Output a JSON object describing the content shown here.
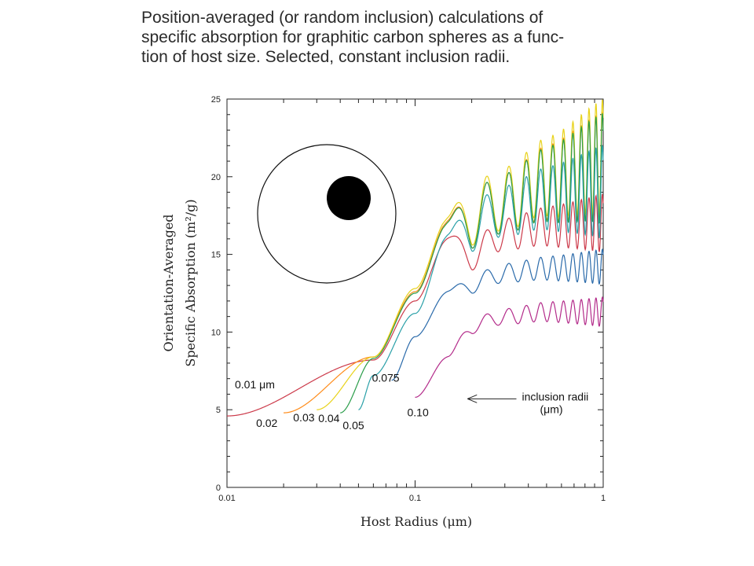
{
  "title_lines": [
    "Position-averaged (or random inclusion) calculations of",
    "specific absorption for graphitic carbon spheres as a func-",
    "tion of host size. Selected, constant inclusion radii."
  ],
  "chart_data": {
    "type": "line",
    "xscale": "log",
    "xlim": [
      0.01,
      1
    ],
    "ylim": [
      0,
      25
    ],
    "xlabel": "Host Radius (μm)",
    "ylabel_lines": [
      "Orientation-Averaged",
      "Specific Absorption (m²/g)"
    ],
    "xticks": [
      {
        "value": 0.01,
        "label": "0.01"
      },
      {
        "value": 0.1,
        "label": "0.1"
      },
      {
        "value": 1,
        "label": "1"
      }
    ],
    "yticks": [
      0,
      5,
      10,
      15,
      20,
      25
    ],
    "grid": false,
    "legend_note": {
      "line1": "inclusion radii",
      "line2": "(μm)"
    },
    "series": [
      {
        "name": "0.01 μm",
        "color": "#cc3a4a",
        "x_start": 0.01,
        "y_start": 4.6,
        "base_x": [
          0.06,
          0.1,
          0.15,
          0.2,
          0.3,
          0.5,
          1.0
        ],
        "base_y": [
          8.2,
          12.0,
          16.0,
          15.0,
          16.3,
          16.8,
          17.0
        ],
        "amp": 1.0
      },
      {
        "name": "0.02",
        "color": "#ff8c1a",
        "x_start": 0.02,
        "y_start": 4.8,
        "base_x": [
          0.06,
          0.1,
          0.15,
          0.2,
          0.3,
          0.5,
          1.0
        ],
        "base_y": [
          8.4,
          12.6,
          17.1,
          17.3,
          18.3,
          19.6,
          20.6
        ],
        "amp": 1.9
      },
      {
        "name": "0.03",
        "color": "#e8d21a",
        "x_start": 0.03,
        "y_start": 5.0,
        "base_x": [
          0.06,
          0.1,
          0.15,
          0.2,
          0.3,
          0.5,
          1.0
        ],
        "base_y": [
          8.4,
          12.8,
          17.3,
          17.6,
          18.6,
          20.0,
          21.2
        ],
        "amp": 2.0
      },
      {
        "name": "0.04",
        "color": "#2a9d4a",
        "x_start": 0.04,
        "y_start": 4.8,
        "base_x": [
          0.06,
          0.1,
          0.15,
          0.2,
          0.3,
          0.5,
          1.0
        ],
        "base_y": [
          8.3,
          12.5,
          17.0,
          17.3,
          18.3,
          19.5,
          20.5
        ],
        "amp": 1.9
      },
      {
        "name": "0.05",
        "color": "#2aa0a8",
        "x_start": 0.05,
        "y_start": 5.0,
        "base_x": [
          0.06,
          0.1,
          0.15,
          0.2,
          0.3,
          0.5,
          1.0
        ],
        "base_y": [
          7.2,
          11.2,
          16.2,
          16.8,
          17.8,
          18.6,
          19.0
        ],
        "amp": 1.6
      },
      {
        "name": "0.075",
        "color": "#2a6aaa",
        "x_start": 0.075,
        "y_start": 6.9,
        "base_x": [
          0.1,
          0.15,
          0.2,
          0.3,
          0.5,
          1.0
        ],
        "base_y": [
          9.7,
          12.6,
          13.1,
          13.8,
          14.1,
          14.2
        ],
        "amp": 0.6
      },
      {
        "name": "0.10",
        "color": "#b32b8a",
        "x_start": 0.1,
        "y_start": 5.8,
        "base_x": [
          0.15,
          0.2,
          0.3,
          0.5,
          1.0
        ],
        "base_y": [
          8.4,
          10.4,
          11.0,
          11.3,
          11.3
        ],
        "amp": 0.5
      }
    ],
    "labels": [
      {
        "text": "0.01 μm",
        "series": 0
      },
      {
        "text": "0.02",
        "series": 1
      },
      {
        "text": "0.03",
        "series": 2
      },
      {
        "text": "0.04",
        "series": 3
      },
      {
        "text": "0.05",
        "series": 4
      },
      {
        "text": "0.075",
        "series": 5
      },
      {
        "text": "0.10",
        "series": 6
      }
    ]
  }
}
